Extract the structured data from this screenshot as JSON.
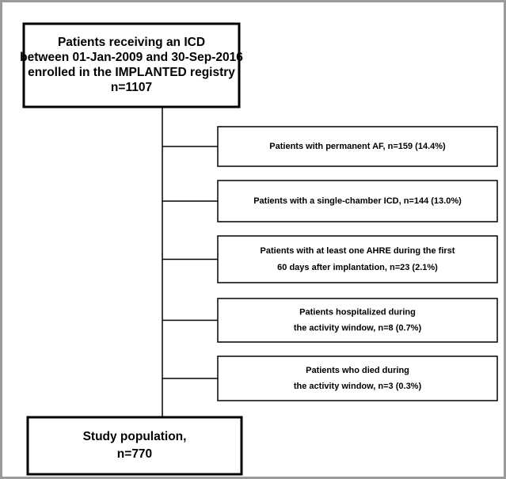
{
  "nodes": [
    {
      "lines": [
        "Patients receiving an ICD",
        "between 01-Jan-2009 and 30-Sep-2016",
        "enrolled in the IMPLANTED registry",
        "n=1107"
      ]
    },
    {
      "lines": [
        "Patients with permanent AF, n=159 (14.4%)"
      ]
    },
    {
      "lines": [
        "Patients with a single-chamber ICD, n=144 (13.0%)"
      ]
    },
    {
      "lines": [
        "Patients with at least one AHRE during the first",
        "60 days after implantation, n=23 (2.1%)"
      ]
    },
    {
      "lines": [
        "Patients hospitalized during",
        "the activity window, n=8 (0.7%)"
      ]
    },
    {
      "lines": [
        "Patients who died during",
        "the activity window, n=3 (0.3%)"
      ]
    },
    {
      "lines": [
        "Study population,",
        "n=770"
      ]
    }
  ]
}
